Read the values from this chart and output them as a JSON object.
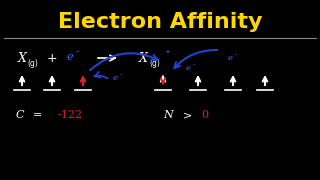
{
  "background_color": "#000000",
  "title": "Electron Affinity",
  "title_color": "#FFD700",
  "title_fontsize": 16,
  "divider_color": "#888888",
  "white_color": "#FFFFFF",
  "blue_color": "#4466FF",
  "red_color": "#DD2222",
  "dark_blue": "#2244CC",
  "bottom_c": "C",
  "bottom_eq": "=",
  "bottom_val": "-122",
  "bottom_n": "N",
  "bottom_gt": ">",
  "bottom_zero": "0"
}
